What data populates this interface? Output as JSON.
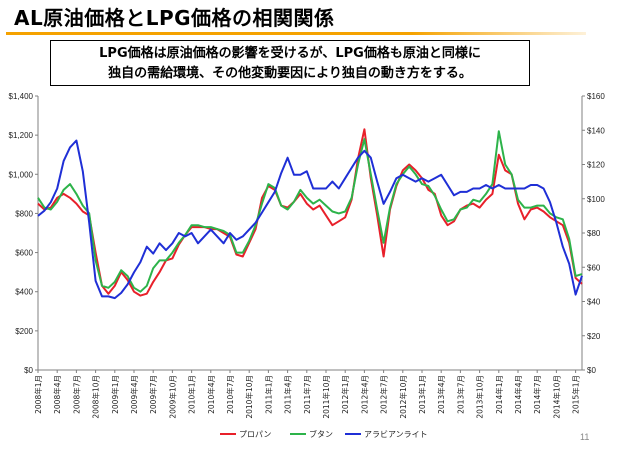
{
  "title": "AL原油価格とLPG価格の相関関係",
  "callout": {
    "line1": "LPG価格は原油価格の影響を受けるが、LPG価格も原油と同様に",
    "line2": "独自の需給環境、その他変動要因により独自の動き方をする。"
  },
  "page_number": "11",
  "colors": {
    "propane": "#e8202a",
    "butane": "#2db34a",
    "arabian_light": "#1f2fd6",
    "title_rule": "#f5a200"
  },
  "chart_data": {
    "type": "line",
    "x": [
      "2008年1月",
      "2008年2月",
      "2008年3月",
      "2008年4月",
      "2008年5月",
      "2008年6月",
      "2008年7月",
      "2008年8月",
      "2008年9月",
      "2008年10月",
      "2008年11月",
      "2008年12月",
      "2009年1月",
      "2009年2月",
      "2009年3月",
      "2009年4月",
      "2009年5月",
      "2009年6月",
      "2009年7月",
      "2009年8月",
      "2009年9月",
      "2009年10月",
      "2009年11月",
      "2009年12月",
      "2010年1月",
      "2010年2月",
      "2010年3月",
      "2010年4月",
      "2010年5月",
      "2010年6月",
      "2010年7月",
      "2010年8月",
      "2010年9月",
      "2010年10月",
      "2010年11月",
      "2010年12月",
      "2011年1月",
      "2011年2月",
      "2011年3月",
      "2011年4月",
      "2011年5月",
      "2011年6月",
      "2011年7月",
      "2011年8月",
      "2011年9月",
      "2011年10月",
      "2011年11月",
      "2011年12月",
      "2012年1月",
      "2012年2月",
      "2012年3月",
      "2012年4月",
      "2012年5月",
      "2012年6月",
      "2012年7月",
      "2012年8月",
      "2012年9月",
      "2012年10月",
      "2012年11月",
      "2012年12月",
      "2013年1月",
      "2013年2月",
      "2013年3月",
      "2013年4月",
      "2013年5月",
      "2013年6月",
      "2013年7月",
      "2013年8月",
      "2013年9月",
      "2013年10月",
      "2013年11月",
      "2013年12月",
      "2014年1月",
      "2014年2月",
      "2014年3月",
      "2014年4月",
      "2014年5月",
      "2014年6月",
      "2014年7月",
      "2014年8月",
      "2014年9月",
      "2014年10月",
      "2014年11月",
      "2014年12月",
      "2015年1月",
      "2015年2月"
    ],
    "x_tick_labels": [
      "2008年1月",
      "2008年4月",
      "2008年7月",
      "2008年10月",
      "2009年1月",
      "2009年4月",
      "2009年7月",
      "2009年10月",
      "2010年1月",
      "2010年4月",
      "2010年7月",
      "2010年10月",
      "2011年1月",
      "2011年4月",
      "2011年7月",
      "2011年10月",
      "2012年1月",
      "2012年4月",
      "2012年7月",
      "2012年10月",
      "2013年1月",
      "2013年4月",
      "2013年7月",
      "2013年10月",
      "2014年1月",
      "2014年4月",
      "2014年7月",
      "2014年10月",
      "2015年1月"
    ],
    "y_left": {
      "min": 0,
      "max": 1400,
      "step": 200,
      "tick_labels": [
        "$0",
        "$200",
        "$400",
        "$600",
        "$800",
        "$1,000",
        "$1,200",
        "$1,400"
      ]
    },
    "y_right": {
      "min": 0,
      "max": 160,
      "step": 20,
      "tick_labels": [
        "$0",
        "$20",
        "$40",
        "$60",
        "$80",
        "$100",
        "$120",
        "$140",
        "$160"
      ]
    },
    "grid": false,
    "legend_position": "bottom",
    "series": [
      {
        "name": "プロパン",
        "axis": "left",
        "color": "#e8202a",
        "values": [
          850,
          820,
          830,
          880,
          900,
          880,
          850,
          810,
          790,
          600,
          430,
          390,
          430,
          500,
          460,
          400,
          380,
          390,
          450,
          500,
          560,
          570,
          640,
          690,
          730,
          730,
          730,
          720,
          720,
          700,
          680,
          590,
          580,
          650,
          720,
          880,
          940,
          920,
          840,
          830,
          860,
          900,
          850,
          820,
          840,
          790,
          740,
          760,
          780,
          870,
          1080,
          1230,
          980,
          790,
          580,
          820,
          940,
          1020,
          1050,
          1020,
          980,
          920,
          900,
          790,
          740,
          760,
          820,
          840,
          850,
          830,
          870,
          900,
          1100,
          1020,
          1000,
          850,
          770,
          820,
          830,
          810,
          780,
          760,
          740,
          650,
          470,
          440
        ]
      },
      {
        "name": "ブタン",
        "axis": "left",
        "color": "#2db34a",
        "values": [
          880,
          830,
          820,
          860,
          920,
          950,
          900,
          840,
          800,
          560,
          430,
          420,
          450,
          510,
          480,
          420,
          400,
          430,
          520,
          560,
          560,
          600,
          650,
          690,
          740,
          740,
          730,
          730,
          720,
          710,
          690,
          600,
          600,
          660,
          740,
          850,
          950,
          930,
          840,
          820,
          860,
          920,
          880,
          850,
          870,
          840,
          810,
          800,
          810,
          880,
          1050,
          1180,
          1000,
          820,
          650,
          830,
          950,
          1000,
          1040,
          1000,
          950,
          940,
          890,
          820,
          760,
          770,
          820,
          830,
          870,
          860,
          900,
          950,
          1220,
          1050,
          1000,
          870,
          830,
          830,
          840,
          840,
          800,
          780,
          770,
          670,
          480,
          490
        ]
      },
      {
        "name": "アラビアンライト",
        "axis": "right",
        "color": "#1f2fd6",
        "values": [
          90,
          93,
          98,
          106,
          122,
          130,
          134,
          116,
          86,
          52,
          43,
          43,
          42,
          45,
          50,
          57,
          63,
          72,
          68,
          74,
          70,
          74,
          80,
          78,
          80,
          74,
          78,
          82,
          78,
          74,
          80,
          76,
          78,
          82,
          86,
          92,
          98,
          104,
          115,
          124,
          114,
          114,
          116,
          106,
          106,
          106,
          110,
          106,
          112,
          118,
          124,
          128,
          124,
          110,
          97,
          104,
          112,
          114,
          112,
          110,
          112,
          110,
          112,
          114,
          108,
          102,
          104,
          104,
          106,
          106,
          108,
          106,
          108,
          106,
          106,
          106,
          106,
          108,
          108,
          106,
          98,
          86,
          72,
          62,
          44,
          55
        ]
      }
    ]
  }
}
